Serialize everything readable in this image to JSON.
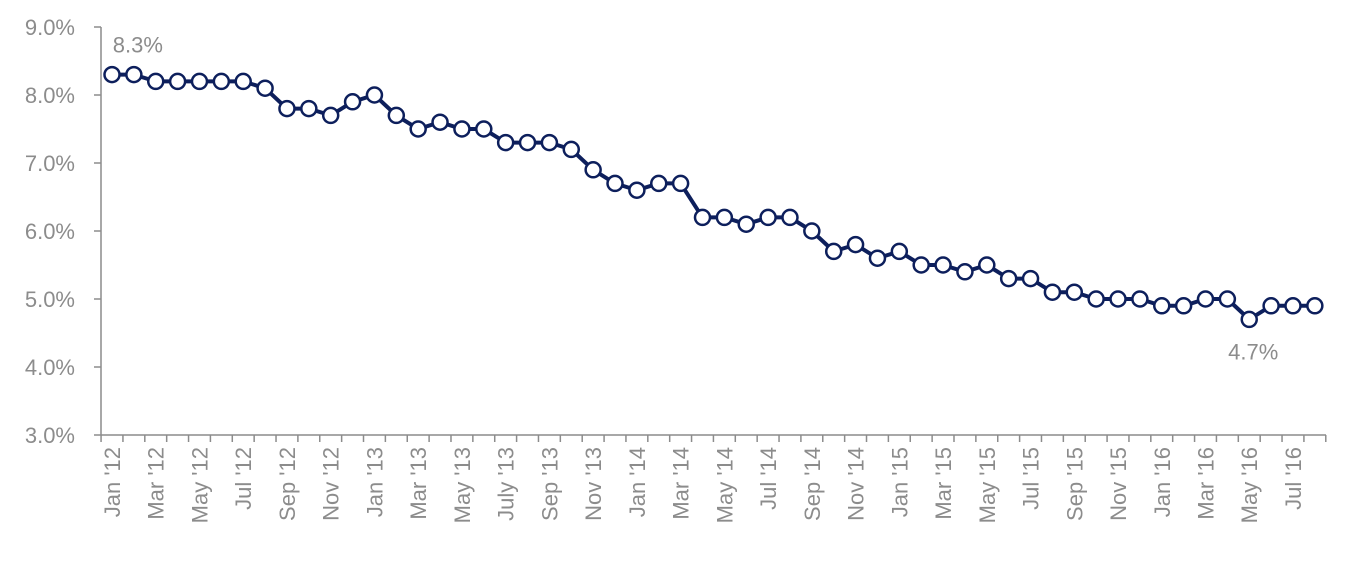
{
  "chart_data": {
    "type": "line",
    "title": "",
    "xlabel": "",
    "ylabel": "",
    "ylim": [
      3.0,
      9.0
    ],
    "y_ticks": [
      "3.0%",
      "4.0%",
      "5.0%",
      "6.0%",
      "7.0%",
      "8.0%",
      "9.0%"
    ],
    "y_tick_values": [
      3.0,
      4.0,
      5.0,
      6.0,
      7.0,
      8.0,
      9.0
    ],
    "grid": false,
    "legend": "none",
    "line_color": "#0d1f5c",
    "categories": [
      "Jan '12",
      "Feb '12",
      "Mar '12",
      "Apr '12",
      "May '12",
      "Jun '12",
      "Jul '12",
      "Aug '12",
      "Sep '12",
      "Oct '12",
      "Nov '12",
      "Dec '12",
      "Jan '13",
      "Feb '13",
      "Mar '13",
      "Apr '13",
      "May '13",
      "Jun '13",
      "July '13",
      "Aug '13",
      "Sep '13",
      "Oct '13",
      "Nov '13",
      "Dec '13",
      "Jan '14",
      "Feb '14",
      "Mar '14",
      "Apr '14",
      "May '14",
      "Jun '14",
      "Jul '14",
      "Aug '14",
      "Sep '14",
      "Oct '14",
      "Nov '14",
      "Dec '14",
      "Jan '15",
      "Feb '15",
      "Mar '15",
      "Apr '15",
      "May '15",
      "Jun '15",
      "Jul '15",
      "Aug '15",
      "Sep '15",
      "Oct '15",
      "Nov '15",
      "Dec '15",
      "Jan '16",
      "Feb '16",
      "Mar '16",
      "Apr '16",
      "May '16",
      "Jun '16",
      "Jul '16",
      "Aug '16"
    ],
    "x_tick_labels": [
      "Jan '12",
      "Mar '12",
      "May '12",
      "Jul '12",
      "Sep '12",
      "Nov '12",
      "Jan '13",
      "Mar '13",
      "May '13",
      "July '13",
      "Sep '13",
      "Nov '13",
      "Jan '14",
      "Mar '14",
      "May '14",
      "Jul '14",
      "Sep '14",
      "Nov '14",
      "Jan '15",
      "Mar '15",
      "May '15",
      "Jul '15",
      "Sep '15",
      "Nov '15",
      "Jan '16",
      "Mar '16",
      "May '16",
      "Jul '16"
    ],
    "values": [
      8.3,
      8.3,
      8.2,
      8.2,
      8.2,
      8.2,
      8.2,
      8.1,
      7.8,
      7.8,
      7.7,
      7.9,
      8.0,
      7.7,
      7.5,
      7.6,
      7.5,
      7.5,
      7.3,
      7.3,
      7.3,
      7.2,
      6.9,
      6.7,
      6.6,
      6.7,
      6.7,
      6.2,
      6.2,
      6.1,
      6.2,
      6.2,
      6.0,
      5.7,
      5.8,
      5.6,
      5.7,
      5.5,
      5.5,
      5.4,
      5.5,
      5.3,
      5.3,
      5.1,
      5.1,
      5.0,
      5.0,
      5.0,
      4.9,
      4.9,
      5.0,
      5.0,
      4.7,
      4.9,
      4.9,
      4.9
    ],
    "annotations": [
      {
        "text": "8.3%",
        "index": 1,
        "position": "above"
      },
      {
        "text": "4.7%",
        "index": 52,
        "position": "below"
      }
    ]
  }
}
